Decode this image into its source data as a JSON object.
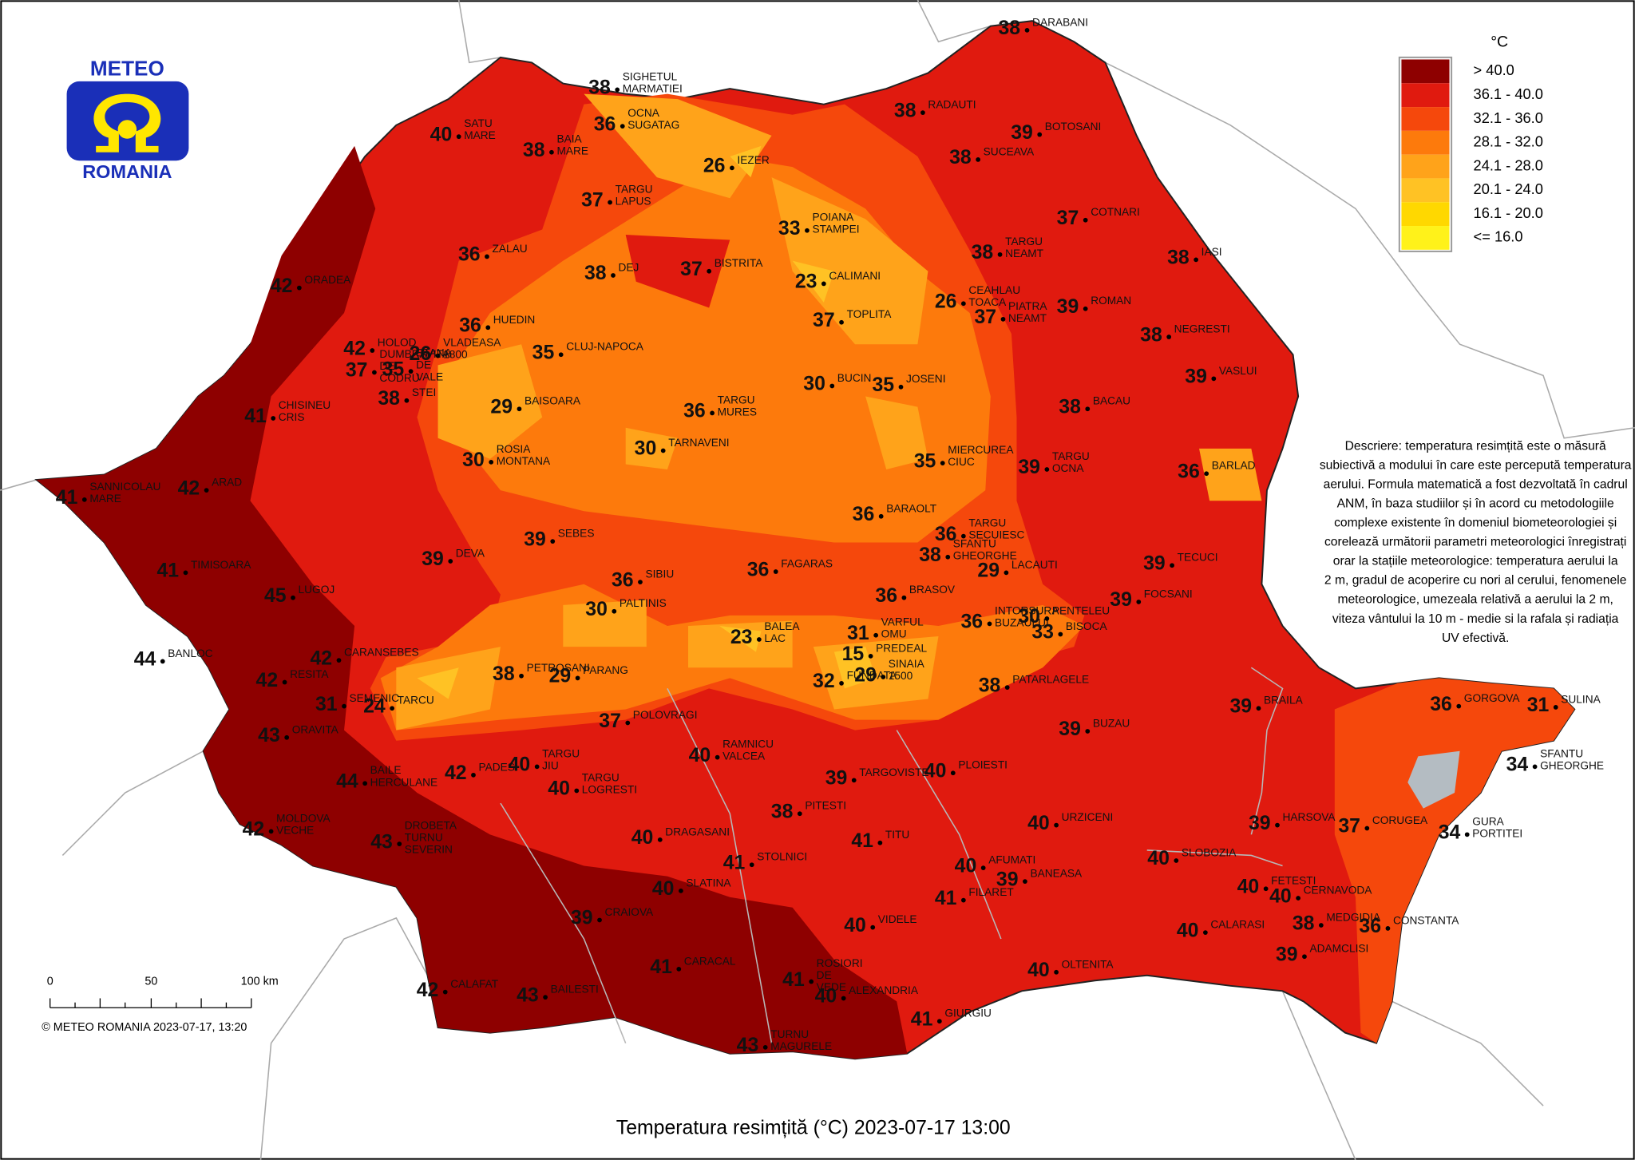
{
  "logo": {
    "top": "METEO",
    "bottom": "ROMANIA"
  },
  "title": "Temperatura resimțită (°C) 2023-07-17 13:00",
  "copyright": "© METEO ROMANIA 2023-07-17, 13:20",
  "scale_bar": {
    "labels": [
      "0",
      "50",
      "100 km"
    ]
  },
  "legend": {
    "unit": "°C",
    "classes": [
      {
        "label": "> 40.0",
        "color": "#8e0000"
      },
      {
        "label": "36.1 - 40.0",
        "color": "#e01a0f"
      },
      {
        "label": "32.1 - 36.0",
        "color": "#f5480c"
      },
      {
        "label": "28.1 - 32.0",
        "color": "#fd7a0c"
      },
      {
        "label": "24.1 - 28.0",
        "color": "#ffa31a"
      },
      {
        "label": "20.1 - 24.0",
        "color": "#ffc224"
      },
      {
        "label": "16.1 - 20.0",
        "color": "#ffd800"
      },
      {
        "label": "<= 16.0",
        "color": "#fff21a"
      }
    ]
  },
  "description": [
    "Descriere: temperatura resimțită este o măsură",
    "subiectivă a modului în care este percepută temperatura",
    "aerului. Formula matematică a fost dezvoltată în cadrul",
    "ANM, în baza studiilor și în acord cu metodologiile",
    "complexe existente în domeniul biometeorologiei și",
    "corelează următorii parametri meteorologici înregistrați",
    "orar la stațiile meteorologice: temperatura aerului la",
    "2 m, gradul de acoperire cu nori al cerului, fenomenele",
    "meteorologice, umezeala relativă a aerului la 2 m,",
    "viteza vântului la 10 m - medie si la rafala și radiația",
    "UV efectivă."
  ],
  "stations": [
    {
      "name": [
        "DARABANI"
      ],
      "value": 38
    },
    {
      "name": [
        "SIGHETUL",
        "MARMATIEI"
      ],
      "value": 38
    },
    {
      "name": [
        "OCNA",
        "SUGATAG"
      ],
      "value": 36
    },
    {
      "name": [
        "SATU",
        "MARE"
      ],
      "value": 40
    },
    {
      "name": [
        "BAIA",
        "MARE"
      ],
      "value": 38
    },
    {
      "name": [
        "RADAUTI"
      ],
      "value": 38
    },
    {
      "name": [
        "BOTOSANI"
      ],
      "value": 39
    },
    {
      "name": [
        "SUCEAVA"
      ],
      "value": 38
    },
    {
      "name": [
        "IEZER"
      ],
      "value": 26
    },
    {
      "name": [
        "TARGU",
        "LAPUS"
      ],
      "value": 37
    },
    {
      "name": [
        "COTNARI"
      ],
      "value": 37
    },
    {
      "name": [
        "POIANA",
        "STAMPEI"
      ],
      "value": 33
    },
    {
      "name": [
        "ZALAU"
      ],
      "value": 36
    },
    {
      "name": [
        "TARGU",
        "NEAMT"
      ],
      "value": 38
    },
    {
      "name": [
        "IASI"
      ],
      "value": 38
    },
    {
      "name": [
        "ORADEA"
      ],
      "value": 42
    },
    {
      "name": [
        "DEJ"
      ],
      "value": 38
    },
    {
      "name": [
        "BISTRITA"
      ],
      "value": 37
    },
    {
      "name": [
        "CALIMANI"
      ],
      "value": 23
    },
    {
      "name": [
        "ROMAN"
      ],
      "value": 39
    },
    {
      "name": [
        "CEAHLAU",
        "TOACA"
      ],
      "value": 26
    },
    {
      "name": [
        "PIATRA",
        "NEAMT"
      ],
      "value": 37
    },
    {
      "name": [
        "TOPLITA"
      ],
      "value": 37
    },
    {
      "name": [
        "VLADEASA",
        "1800"
      ],
      "value": 26
    },
    {
      "name": [
        "HUEDIN"
      ],
      "value": 36
    },
    {
      "name": [
        "NEGRESTI"
      ],
      "value": 38
    },
    {
      "name": [
        "CLUJ-NAPOCA"
      ],
      "value": 35
    },
    {
      "name": [
        "HOLOD"
      ],
      "value": 42
    },
    {
      "name": [
        "CHISINEU",
        "CRIS"
      ],
      "value": 41
    },
    {
      "name": [
        "DUMBRAVITA",
        "DE",
        "CODRU"
      ],
      "value": 37
    },
    {
      "name": [
        "STANA",
        "DE",
        "VALE"
      ],
      "value": 35
    },
    {
      "name": [
        "STEI"
      ],
      "value": 38
    },
    {
      "name": [
        "VASLUI"
      ],
      "value": 39
    },
    {
      "name": [
        "BUCIN"
      ],
      "value": 30
    },
    {
      "name": [
        "JOSENI"
      ],
      "value": 35
    },
    {
      "name": [
        "BAISOARA"
      ],
      "value": 29
    },
    {
      "name": [
        "TARGU",
        "MURES"
      ],
      "value": 36
    },
    {
      "name": [
        "BACAU"
      ],
      "value": 38
    },
    {
      "name": [
        "ROSIA",
        "MONTANA"
      ],
      "value": 30
    },
    {
      "name": [
        "TARNAVENI"
      ],
      "value": 30
    },
    {
      "name": [
        "MIERCUREA",
        "CIUC"
      ],
      "value": 35
    },
    {
      "name": [
        "TARGU",
        "OCNA"
      ],
      "value": 39
    },
    {
      "name": [
        "BARLAD"
      ],
      "value": 36
    },
    {
      "name": [
        "SANNICOLAU",
        "MARE"
      ],
      "value": 41
    },
    {
      "name": [
        "ARAD"
      ],
      "value": 42
    },
    {
      "name": [
        "BARAOLT"
      ],
      "value": 36
    },
    {
      "name": [
        "SEBES"
      ],
      "value": 39
    },
    {
      "name": [
        "TARGU",
        "SECUIESC"
      ],
      "value": 36
    },
    {
      "name": [
        "SFANTU",
        "GHEORGHE"
      ],
      "value": 38
    },
    {
      "name": [
        "DEVA"
      ],
      "value": 39
    },
    {
      "name": [
        "TIMISOARA"
      ],
      "value": 41
    },
    {
      "name": [
        "TECUCI"
      ],
      "value": 39
    },
    {
      "name": [
        "LACAUTI"
      ],
      "value": 29
    },
    {
      "name": [
        "SIBIU"
      ],
      "value": 36
    },
    {
      "name": [
        "FAGARAS"
      ],
      "value": 36
    },
    {
      "name": [
        "LUGOJ"
      ],
      "value": 45
    },
    {
      "name": [
        "BRASOV"
      ],
      "value": 36
    },
    {
      "name": [
        "FOCSANI"
      ],
      "value": 39
    },
    {
      "name": [
        "INTORSURA",
        "BUZAULUI"
      ],
      "value": 36
    },
    {
      "name": [
        "PALTINIS"
      ],
      "value": 30
    },
    {
      "name": [
        "PENTELEU"
      ],
      "value": 30
    },
    {
      "name": [
        "BISOCA"
      ],
      "value": 33
    },
    {
      "name": [
        "BALEA",
        "LAC"
      ],
      "value": 23
    },
    {
      "name": [
        "VARFUL",
        "OMU"
      ],
      "value": 31
    },
    {
      "name": [
        "CARANSEBES"
      ],
      "value": 42
    },
    {
      "name": [
        "BANLOC"
      ],
      "value": 44
    },
    {
      "name": [
        "PETROSANI"
      ],
      "value": 38
    },
    {
      "name": [
        "PARANG"
      ],
      "value": 29
    },
    {
      "name": [
        "PREDEAL"
      ],
      "value": 15
    },
    {
      "name": [
        "FUNDATA"
      ],
      "value": 32
    },
    {
      "name": [
        "SINAIA",
        "1500"
      ],
      "value": 29
    },
    {
      "name": [
        "RESITA"
      ],
      "value": 42
    },
    {
      "name": [
        "PATARLAGELE"
      ],
      "value": 38
    },
    {
      "name": [
        "SEMENIC"
      ],
      "value": 31
    },
    {
      "name": [
        "TARCU"
      ],
      "value": 24
    },
    {
      "name": [
        "GORGOVA"
      ],
      "value": 36
    },
    {
      "name": [
        "SULINA"
      ],
      "value": 31
    },
    {
      "name": [
        "BRAILA"
      ],
      "value": 39
    },
    {
      "name": [
        "POLOVRAGI"
      ],
      "value": 37
    },
    {
      "name": [
        "BUZAU"
      ],
      "value": 39
    },
    {
      "name": [
        "ORAVITA"
      ],
      "value": 43
    },
    {
      "name": [
        "TARGU",
        "JIU"
      ],
      "value": 40
    },
    {
      "name": [
        "RAMNICU",
        "VALCEA"
      ],
      "value": 40
    },
    {
      "name": [
        "PADES"
      ],
      "value": 42
    },
    {
      "name": [
        "BAILE",
        "HERCULANE"
      ],
      "value": 44
    },
    {
      "name": [
        "SFANTU",
        "GHEORGHE"
      ],
      "value": 34
    },
    {
      "name": [
        "TARGOVISTE"
      ],
      "value": 39
    },
    {
      "name": [
        "PLOIESTI"
      ],
      "value": 40
    },
    {
      "name": [
        "TARGU",
        "LOGRESTI"
      ],
      "value": 40
    },
    {
      "name": [
        "PITESTI"
      ],
      "value": 38
    },
    {
      "name": [
        "MOLDOVA",
        "VECHE"
      ],
      "value": 42
    },
    {
      "name": [
        "URZICENI"
      ],
      "value": 40
    },
    {
      "name": [
        "HARSOVA"
      ],
      "value": 39
    },
    {
      "name": [
        "CORUGEA"
      ],
      "value": 37
    },
    {
      "name": [
        "GURA",
        "PORTITEI"
      ],
      "value": 34
    },
    {
      "name": [
        "DROBETA",
        "TURNU",
        "SEVERIN"
      ],
      "value": 43
    },
    {
      "name": [
        "DRAGASANI"
      ],
      "value": 40
    },
    {
      "name": [
        "TITU"
      ],
      "value": 41
    },
    {
      "name": [
        "SLOBOZIA"
      ],
      "value": 40
    },
    {
      "name": [
        "STOLNICI"
      ],
      "value": 41
    },
    {
      "name": [
        "AFUMATI"
      ],
      "value": 40
    },
    {
      "name": [
        "BANEASA"
      ],
      "value": 39
    },
    {
      "name": [
        "FILARET"
      ],
      "value": 41
    },
    {
      "name": [
        "SLATINA"
      ],
      "value": 40
    },
    {
      "name": [
        "FETESTI"
      ],
      "value": 40
    },
    {
      "name": [
        "CERNAVODA"
      ],
      "value": 40
    },
    {
      "name": [
        "CRAIOVA"
      ],
      "value": 39
    },
    {
      "name": [
        "VIDELE"
      ],
      "value": 40
    },
    {
      "name": [
        "MEDGIDIA"
      ],
      "value": 38
    },
    {
      "name": [
        "CONSTANTA"
      ],
      "value": 36
    },
    {
      "name": [
        "CALARASI"
      ],
      "value": 40
    },
    {
      "name": [
        "ROSIORI",
        "DE",
        "VEDE"
      ],
      "value": 41
    },
    {
      "name": [
        "CARACAL"
      ],
      "value": 41
    },
    {
      "name": [
        "ADAMCLISI"
      ],
      "value": 39
    },
    {
      "name": [
        "OLTENITA"
      ],
      "value": 40
    },
    {
      "name": [
        "CALAFAT"
      ],
      "value": 42
    },
    {
      "name": [
        "BAILESTI"
      ],
      "value": 43
    },
    {
      "name": [
        "ALEXANDRIA"
      ],
      "value": 40
    },
    {
      "name": [
        "GIURGIU"
      ],
      "value": 41
    },
    {
      "name": [
        "TURNU",
        "MAGURELE"
      ],
      "value": 43
    }
  ]
}
